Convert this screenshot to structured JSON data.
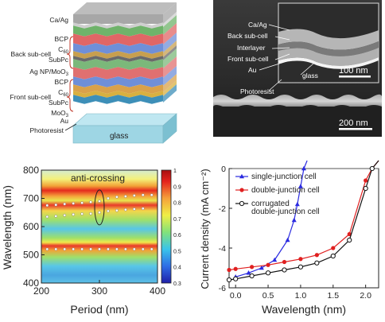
{
  "panel_a": {
    "layers": {
      "ca_ag": "Ca/Ag",
      "bcp_back": "BCP",
      "c60_back": "C",
      "c60_sub": "60",
      "subpc_back": "SubPc",
      "ag_moo3": "Ag NP/MoO",
      "ag_moo3_sub": "3",
      "bcp_front": "BCP",
      "c60_front": "C",
      "c60_front_sub": "60",
      "subpc_front": "SubPc",
      "moo3": "MoO",
      "moo3_sub": "3",
      "au": "Au",
      "photoresist": "Photoresist",
      "glass": "glass"
    },
    "groups": {
      "back": "Back sub-cell",
      "front": "Front sub-cell"
    }
  },
  "panel_b": {
    "labels": {
      "ca_ag": "Ca/Ag",
      "back": "Back sub-cell",
      "interlayer": "Interlayer",
      "front": "Front sub-cell",
      "au": "Au",
      "glass": "glass",
      "photoresist": "Photoresist"
    },
    "scalebar_inset": "100 nm",
    "scalebar_main": "200 nm"
  },
  "chart_data": [
    {
      "type": "heatmap",
      "title": "",
      "annotation": "anti-crossing",
      "xlabel": "Period (nm)",
      "ylabel": "Wavelength (nm)",
      "xlim": [
        200,
        400
      ],
      "ylim": [
        400,
        800
      ],
      "xticks": [
        "200",
        "300",
        "400"
      ],
      "yticks": [
        "400",
        "500",
        "600",
        "700",
        "800"
      ],
      "colorbar_range": [
        0.3,
        1.0
      ],
      "colorbar_ticks": [
        "0.3",
        "0.4",
        "0.5",
        "0.6",
        "0.7",
        "0.8",
        "0.9",
        "1"
      ],
      "bands": [
        {
          "name": "upper",
          "center_wavelength": 690,
          "intensity": 0.95
        },
        {
          "name": "middle",
          "center_wavelength": 640,
          "intensity": 0.85
        },
        {
          "name": "lower",
          "center_wavelength": 520,
          "intensity": 0.9
        }
      ],
      "dot_rows": [
        {
          "x": [
            210,
            225,
            240,
            255,
            270,
            285,
            300,
            315,
            330,
            345,
            360,
            375,
            390
          ],
          "y": [
            675,
            677,
            680,
            682,
            684,
            687,
            690,
            700,
            705,
            707,
            710,
            712,
            712
          ]
        },
        {
          "x": [
            210,
            225,
            240,
            255,
            270,
            285,
            300,
            315,
            330,
            345,
            360,
            375
          ],
          "y": [
            635,
            637,
            640,
            643,
            645,
            646,
            650,
            655,
            657,
            660,
            662,
            664
          ]
        },
        {
          "x": [
            210,
            225,
            240,
            255,
            270,
            285,
            300,
            315,
            330,
            345,
            360,
            375,
            390
          ],
          "y": [
            520,
            520,
            520,
            520,
            520,
            520,
            520,
            520,
            520,
            520,
            520,
            520,
            520
          ]
        }
      ],
      "ellipse_center": [
        300,
        668
      ]
    },
    {
      "type": "line",
      "title": "",
      "xlabel": "Wavelength (nm)",
      "ylabel": "Current density (mA cm⁻²)",
      "xlim": [
        -0.1,
        2.2
      ],
      "ylim": [
        -6,
        0
      ],
      "xticks": [
        "0.0",
        "0.5",
        "1.0",
        "1.5",
        "2.0"
      ],
      "yticks": [
        "-6",
        "-4",
        "-2",
        "0"
      ],
      "series": [
        {
          "name": "single-junction cell",
          "color": "#2a2ae0",
          "marker": "triangle",
          "x": [
            0.0,
            0.2,
            0.4,
            0.6,
            0.8,
            0.9,
            0.95,
            1.0,
            1.05,
            1.1
          ],
          "y": [
            -5.45,
            -5.25,
            -5.0,
            -4.6,
            -3.6,
            -2.6,
            -1.8,
            -0.9,
            0.0,
            0.4
          ]
        },
        {
          "name": "double-junction cell",
          "color": "#e02020",
          "marker": "circle",
          "x": [
            -0.1,
            0.0,
            0.25,
            0.5,
            0.75,
            1.0,
            1.25,
            1.5,
            1.75,
            2.0,
            2.1,
            2.2
          ],
          "y": [
            -5.1,
            -5.05,
            -4.95,
            -4.85,
            -4.7,
            -4.55,
            -4.35,
            -4.0,
            -3.3,
            -0.6,
            0.0,
            0.4
          ]
        },
        {
          "name": "corrugated double-junction cell",
          "color": "#111111",
          "marker": "open-circle",
          "x": [
            -0.1,
            0.0,
            0.25,
            0.5,
            0.75,
            1.0,
            1.25,
            1.5,
            1.75,
            2.0,
            2.1,
            2.2
          ],
          "y": [
            -5.6,
            -5.55,
            -5.4,
            -5.25,
            -5.1,
            -4.95,
            -4.75,
            -4.4,
            -3.6,
            -1.0,
            0.0,
            0.4
          ]
        }
      ],
      "legend_position": "top-left"
    }
  ]
}
